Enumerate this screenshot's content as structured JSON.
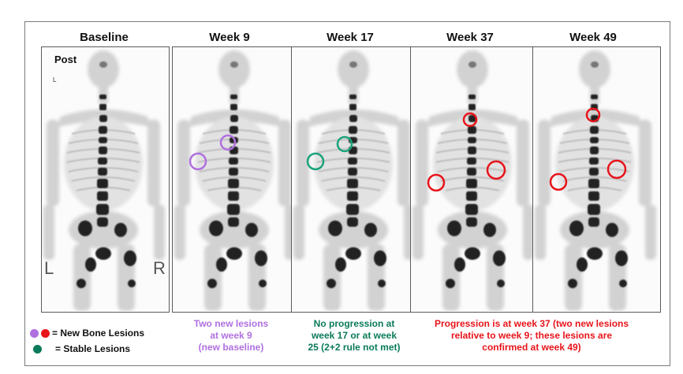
{
  "columns": [
    {
      "title": "Baseline"
    },
    {
      "title": "Week 9"
    },
    {
      "title": "Week 17"
    },
    {
      "title": "Week 37"
    },
    {
      "title": "Week 49"
    }
  ],
  "panel_labels": {
    "view": "Post",
    "left": "L",
    "right": "R",
    "small_mark": "L"
  },
  "legend": {
    "new_lesions_label": "= New Bone Lesions",
    "stable_lesions_label": "= Stable Lesions",
    "new_colors": [
      "#b070e0",
      "#e8141a"
    ],
    "stable_color": "#0a7a5a"
  },
  "captions": {
    "week9": {
      "lines": [
        "Two new lesions",
        "at week 9",
        "(new baseline)"
      ],
      "color": "#b070e0"
    },
    "week17": {
      "lines": [
        "No progression at",
        "week 17 or at week",
        "25 (2+2 rule not met)"
      ],
      "color": "#0a7a5a"
    },
    "week37_49": {
      "lines": [
        "Progression is at week 37 (two new lesions",
        "relative to week 9; these lesions are",
        "confirmed at week 49)"
      ],
      "color": "#e8141a"
    }
  },
  "circle_colors": {
    "purple": "#b070e0",
    "green": "#1aa37a",
    "red": "#e8141a"
  }
}
